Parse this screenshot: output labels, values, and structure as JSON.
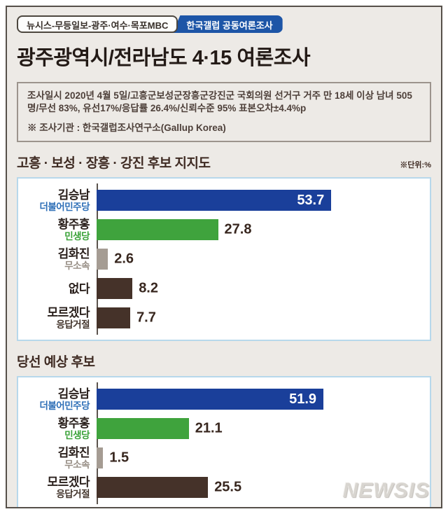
{
  "header": {
    "badge_left": "뉴시스-무등일보-광주·여수·목포MBC",
    "badge_right": "한국갤럽 공동여론조사",
    "title": "광주광역시/전라남도 4·15 여론조사"
  },
  "info_box": {
    "line1": "조사일시 2020년 4월 5일/고흥군보성군장흥군강진군 국회의원 선거구 거주 만 18세 이상 남녀 505명/무선 83%, 유선17%/응답률 26.4%/신뢰수준 95% 표본오차±4.4%p",
    "line2": "※ 조사기관 : 한국갤럽조사연구소(Gallup Korea)"
  },
  "watermark": "NEWSIS",
  "colors": {
    "background": "#edeae6",
    "frame_border": "#56504a",
    "badge_blue": "#1d55a7",
    "panel_border": "#b7d8eb",
    "axis": "#5b534d",
    "democratic_blue": "#1a3f9a",
    "minsaeng_green": "#3fa33d",
    "independent_gray": "#a59c93",
    "none_dark_brown": "#453229",
    "value_text": "#38271f"
  },
  "chart_data": [
    {
      "type": "bar",
      "title": "고흥 · 보성 · 장흥 · 강진 후보 지지도",
      "unit_label": "※단위:%",
      "orientation": "horizontal",
      "xlim": [
        0,
        74
      ],
      "rows": [
        {
          "name": "김승남",
          "party": "더불어민주당",
          "value": 53.7,
          "bar_color": "#1a3f9a",
          "party_color": "#2e6fb7",
          "value_inside": true
        },
        {
          "name": "황주홍",
          "party": "민생당",
          "value": 27.8,
          "bar_color": "#3fa33d",
          "party_color": "#3aa238",
          "value_inside": false
        },
        {
          "name": "김화진",
          "party": "무소속",
          "value": 2.6,
          "bar_color": "#a59c93",
          "party_color": "#968d84",
          "value_inside": false
        },
        {
          "name": "없다",
          "party": "",
          "value": 8.2,
          "bar_color": "#453229",
          "party_color": "#43352c",
          "value_inside": false
        },
        {
          "name": "모르겠다",
          "party": "응답거절",
          "value": 7.7,
          "bar_color": "#453229",
          "party_color": "#43352c",
          "value_inside": false
        }
      ]
    },
    {
      "type": "bar",
      "title": "당선 예상 후보",
      "unit_label": "",
      "orientation": "horizontal",
      "xlim": [
        0,
        74
      ],
      "rows": [
        {
          "name": "김승남",
          "party": "더불어민주당",
          "value": 51.9,
          "bar_color": "#1a3f9a",
          "party_color": "#2e6fb7",
          "value_inside": true
        },
        {
          "name": "황주홍",
          "party": "민생당",
          "value": 21.1,
          "bar_color": "#3fa33d",
          "party_color": "#3aa238",
          "value_inside": false
        },
        {
          "name": "김화진",
          "party": "무소속",
          "value": 1.5,
          "bar_color": "#a59c93",
          "party_color": "#968d84",
          "value_inside": false
        },
        {
          "name": "모르겠다",
          "party": "응답거절",
          "value": 25.5,
          "bar_color": "#453229",
          "party_color": "#43352c",
          "value_inside": false
        }
      ]
    }
  ]
}
